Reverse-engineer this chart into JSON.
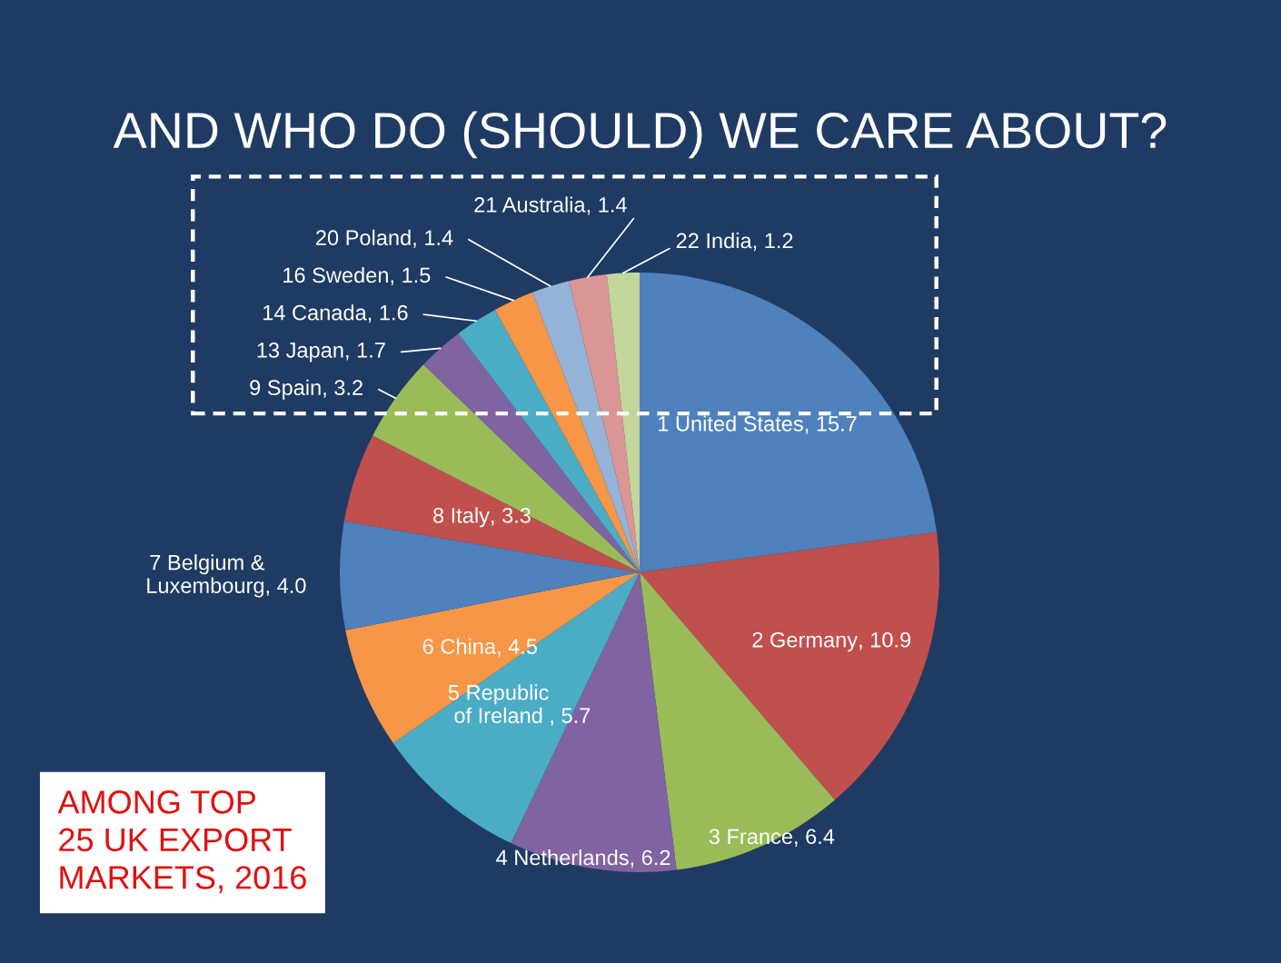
{
  "chart_data": {
    "type": "pie",
    "title": "AND WHO DO (SHOULD) WE CARE ABOUT?",
    "categories": [
      "1 United States",
      "2 Germany",
      "3 France",
      "4 Netherlands",
      "5 Republic of Ireland",
      "6 China",
      "7 Belgium & Luxembourg",
      "8 Italy",
      "9 Spain",
      "13 Japan",
      "14 Canada",
      "16 Sweden",
      "20 Poland",
      "21 Australia",
      "22 India"
    ],
    "values": [
      15.7,
      10.9,
      6.4,
      6.2,
      5.7,
      4.5,
      4.0,
      3.3,
      3.2,
      1.7,
      1.6,
      1.5,
      1.4,
      1.4,
      1.2
    ],
    "colors": [
      "#4f81bd",
      "#c0504d",
      "#9bbb59",
      "#8064a2",
      "#4bacc6",
      "#f79646",
      "#4f81bd",
      "#c0504d",
      "#9bbb59",
      "#8064a2",
      "#4bacc6",
      "#f79646",
      "#95b3d7",
      "#d99694",
      "#c3d69b"
    ],
    "value_labels": [
      ", 15.7",
      ", 10.9",
      ", 6.4",
      ", 6.2",
      ", 5.7",
      ", 4.5",
      ", 4.0",
      ", 3.3",
      ", 3.2",
      ", 1.7",
      ", 1.6",
      ", 1.5",
      ", 1.4",
      ", 1.4",
      ", 1.2"
    ],
    "annotations": [
      "AMONG TOP\n25 UK EXPORT\nMARKETS, 2016"
    ]
  }
}
